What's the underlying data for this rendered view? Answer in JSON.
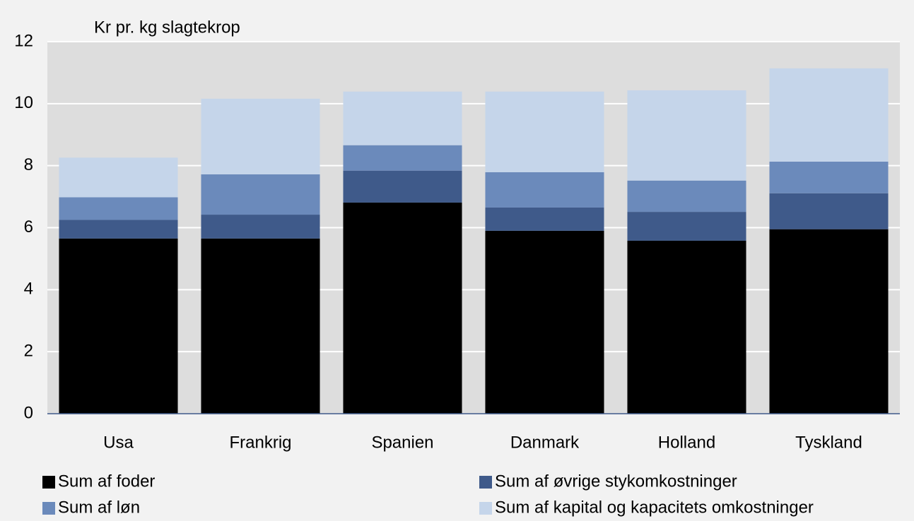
{
  "chart_data": {
    "type": "stacked_bar",
    "y_axis_label": "Kr pr. kg slagtekrop",
    "categories": [
      "Usa",
      "Frankrig",
      "Spanien",
      "Danmark",
      "Holland",
      "Tyskland"
    ],
    "series": [
      {
        "name": "Sum af foder",
        "color": "#000000",
        "values": [
          5.65,
          5.65,
          6.81,
          5.9,
          5.58,
          5.95
        ]
      },
      {
        "name": "Sum af øvrige stykomkostninger",
        "color": "#3f5a8a",
        "values": [
          0.6,
          0.77,
          1.03,
          0.75,
          0.93,
          1.16
        ]
      },
      {
        "name": "Sum af løn",
        "color": "#6b8abb",
        "values": [
          0.73,
          1.3,
          0.82,
          1.14,
          1.01,
          1.02
        ]
      },
      {
        "name": "Sum af kapital og kapacitets omkostninger",
        "color": "#c5d5ea",
        "values": [
          1.28,
          2.44,
          1.73,
          2.6,
          2.91,
          3.01
        ]
      }
    ],
    "ylim": [
      0,
      12
    ],
    "yticks": [
      0,
      2,
      4,
      6,
      8,
      10,
      12
    ],
    "grid": true
  }
}
